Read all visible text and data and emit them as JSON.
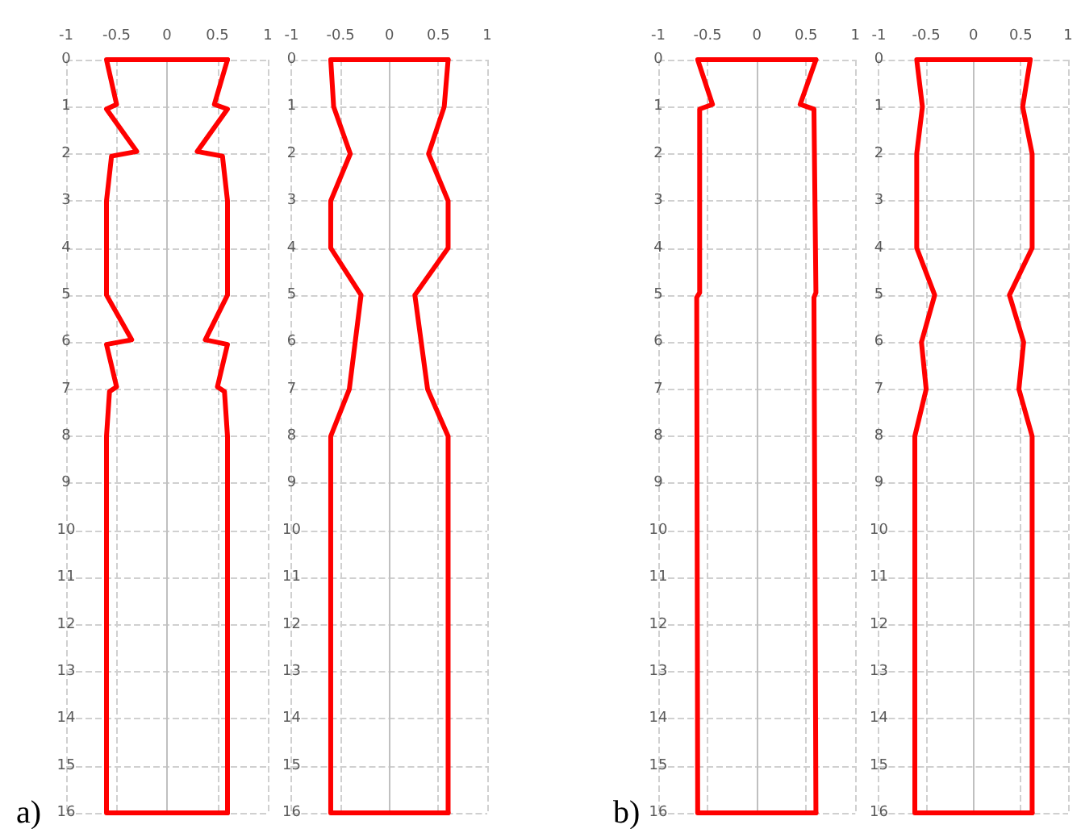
{
  "chart_data": [
    {
      "type": "line",
      "annotations": [
        "a)"
      ],
      "xlim": [
        -1,
        1
      ],
      "xticks": [
        -1,
        -0.5,
        0,
        0.5,
        1
      ],
      "ylim": [
        16,
        0
      ],
      "yticks": [
        0,
        1,
        2,
        3,
        4,
        5,
        6,
        7,
        8,
        9,
        10,
        11,
        12,
        13,
        14,
        15,
        16
      ],
      "grid": true,
      "marker": "none",
      "line_style": "solid",
      "series": [
        {
          "color": "#ff0000",
          "x": [
            0.6,
            -0.6,
            -0.5,
            -0.6,
            -0.3,
            -0.55,
            -0.6,
            -0.6,
            -0.35,
            -0.6,
            -0.5,
            -0.57,
            -0.6,
            -0.6,
            0.6
          ],
          "values": [
            0,
            0,
            0.95,
            1.05,
            1.95,
            2.05,
            3,
            5,
            5.95,
            6.05,
            6.95,
            7.05,
            8,
            16,
            16
          ]
        },
        {
          "color": "#ff0000",
          "x": [
            0.6,
            0.47,
            0.6,
            0.3,
            0.55,
            0.6,
            0.6,
            0.38,
            0.6,
            0.5,
            0.57,
            0.6,
            0.6
          ],
          "values": [
            0,
            0.95,
            1.05,
            1.95,
            2.05,
            3,
            5,
            5.95,
            6.05,
            6.95,
            7.05,
            8,
            16
          ]
        }
      ]
    },
    {
      "type": "line",
      "xlim": [
        -1,
        1
      ],
      "xticks": [
        -1,
        -0.5,
        0,
        0.5,
        1
      ],
      "ylim": [
        16,
        0
      ],
      "yticks": [
        0,
        1,
        2,
        3,
        4,
        5,
        6,
        7,
        8,
        9,
        10,
        11,
        12,
        13,
        14,
        15,
        16
      ],
      "grid": true,
      "marker": "none",
      "line_style": "solid",
      "series": [
        {
          "color": "#ff0000",
          "x": [
            0.6,
            -0.6,
            -0.57,
            -0.4,
            -0.6,
            -0.6,
            -0.29,
            -0.41,
            -0.6,
            -0.6,
            0.6
          ],
          "values": [
            0,
            0,
            1,
            2,
            3,
            4,
            5,
            7,
            8,
            16,
            16
          ]
        },
        {
          "color": "#ff0000",
          "x": [
            0.6,
            0.56,
            0.4,
            0.6,
            0.6,
            0.26,
            0.39,
            0.6,
            0.6
          ],
          "values": [
            0,
            1,
            2,
            3,
            4,
            5,
            7,
            8,
            16
          ]
        }
      ]
    },
    {
      "type": "line",
      "annotations": [
        "b)"
      ],
      "xlim": [
        -1,
        1
      ],
      "xticks": [
        -1,
        -0.5,
        0,
        0.5,
        1
      ],
      "ylim": [
        16,
        0
      ],
      "yticks": [
        0,
        1,
        2,
        3,
        4,
        5,
        6,
        7,
        8,
        9,
        10,
        11,
        12,
        13,
        14,
        15,
        16
      ],
      "grid": true,
      "marker": "none",
      "line_style": "solid",
      "series": [
        {
          "color": "#ff0000",
          "x": [
            0.6,
            -0.6,
            -0.45,
            -0.58,
            -0.58,
            -0.61,
            -0.6,
            0.6
          ],
          "values": [
            0,
            0,
            0.95,
            1.05,
            4.95,
            5.05,
            16,
            16
          ]
        },
        {
          "color": "#ff0000",
          "x": [
            0.6,
            0.44,
            0.58,
            0.6,
            0.58,
            0.6
          ],
          "values": [
            0,
            0.95,
            1.05,
            4.95,
            5.05,
            16
          ]
        }
      ]
    },
    {
      "type": "line",
      "xlim": [
        -1,
        1
      ],
      "xticks": [
        -1,
        -0.5,
        0,
        0.5,
        1
      ],
      "ylim": [
        16,
        0
      ],
      "yticks": [
        0,
        1,
        2,
        3,
        4,
        5,
        6,
        7,
        8,
        9,
        10,
        11,
        12,
        13,
        14,
        15,
        16
      ],
      "grid": true,
      "marker": "none",
      "line_style": "solid",
      "series": [
        {
          "color": "#ff0000",
          "x": [
            0.6,
            -0.6,
            -0.54,
            -0.6,
            -0.6,
            -0.41,
            -0.55,
            -0.5,
            -0.62,
            -0.62,
            0.62
          ],
          "values": [
            0,
            0,
            1,
            2,
            4,
            5,
            6,
            7,
            8,
            16,
            16
          ]
        },
        {
          "color": "#ff0000",
          "x": [
            0.6,
            0.52,
            0.62,
            0.62,
            0.38,
            0.53,
            0.48,
            0.62,
            0.62
          ],
          "values": [
            0,
            1,
            2,
            4,
            5,
            6,
            7,
            8,
            16
          ]
        }
      ]
    }
  ]
}
